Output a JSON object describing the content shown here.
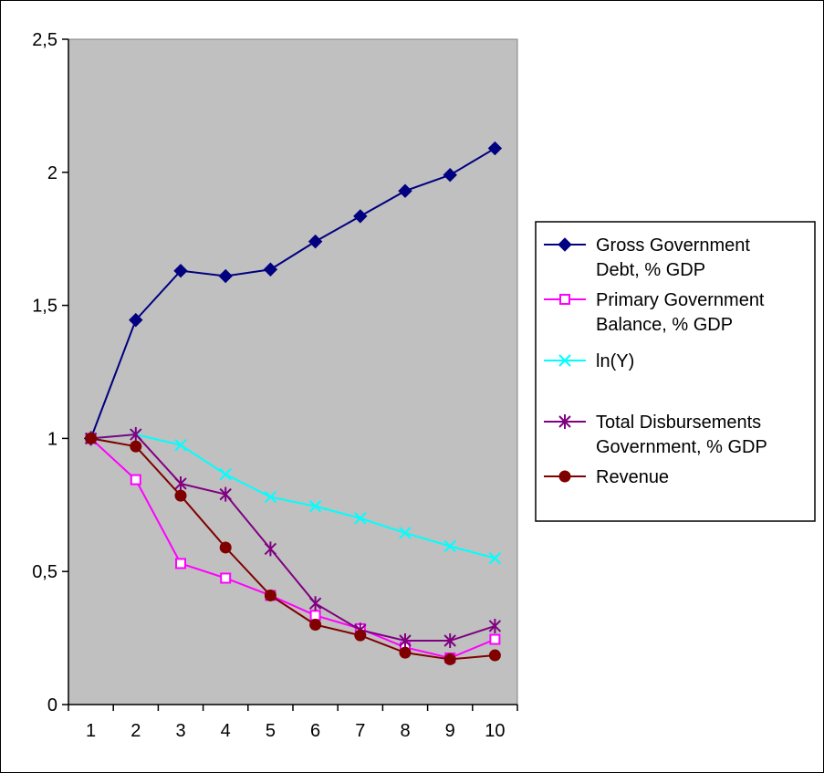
{
  "chart_data": {
    "type": "line",
    "title": "",
    "xlabel": "",
    "ylabel": "",
    "categories": [
      "1",
      "2",
      "3",
      "4",
      "5",
      "6",
      "7",
      "8",
      "9",
      "10"
    ],
    "ylim": [
      0,
      2.5
    ],
    "yticks": [
      "0",
      "0,5",
      "1",
      "1,5",
      "2",
      "2,5"
    ],
    "ytick_values": [
      0,
      0.5,
      1,
      1.5,
      2,
      2.5
    ],
    "grid": false,
    "plot_background": "#C0C0C0",
    "legend_position": "right",
    "series": [
      {
        "name": "Gross Government Debt, % GDP",
        "legend_lines": [
          "Gross Government",
          "Debt, % GDP"
        ],
        "color": "#000080",
        "marker": "diamond",
        "values": [
          1.0,
          1.445,
          1.63,
          1.61,
          1.635,
          1.74,
          1.835,
          1.93,
          1.99,
          2.09
        ]
      },
      {
        "name": "Primary Government Balance, % GDP",
        "legend_lines": [
          "Primary Government",
          "Balance, % GDP"
        ],
        "color": "#FF00FF",
        "marker": "square",
        "values": [
          1.0,
          0.845,
          0.53,
          0.475,
          0.41,
          0.335,
          0.285,
          0.215,
          0.175,
          0.245
        ]
      },
      {
        "name": "ln(Y)",
        "legend_lines": [
          "ln(Y)"
        ],
        "color": "#00FFFF",
        "marker": "x",
        "values": [
          1.0,
          1.015,
          0.975,
          0.865,
          0.78,
          0.745,
          0.7,
          0.645,
          0.595,
          0.55
        ]
      },
      {
        "name": "Total Disbursements Government, % GDP",
        "legend_lines": [
          "Total Disbursements",
          "Government, % GDP"
        ],
        "color": "#800080",
        "marker": "star",
        "values": [
          1.0,
          1.015,
          0.83,
          0.79,
          0.585,
          0.38,
          0.28,
          0.24,
          0.24,
          0.295
        ]
      },
      {
        "name": "Revenue",
        "legend_lines": [
          "Revenue"
        ],
        "color": "#800000",
        "marker": "circle",
        "values": [
          1.0,
          0.97,
          0.785,
          0.59,
          0.41,
          0.3,
          0.26,
          0.195,
          0.17,
          0.185
        ]
      }
    ]
  }
}
